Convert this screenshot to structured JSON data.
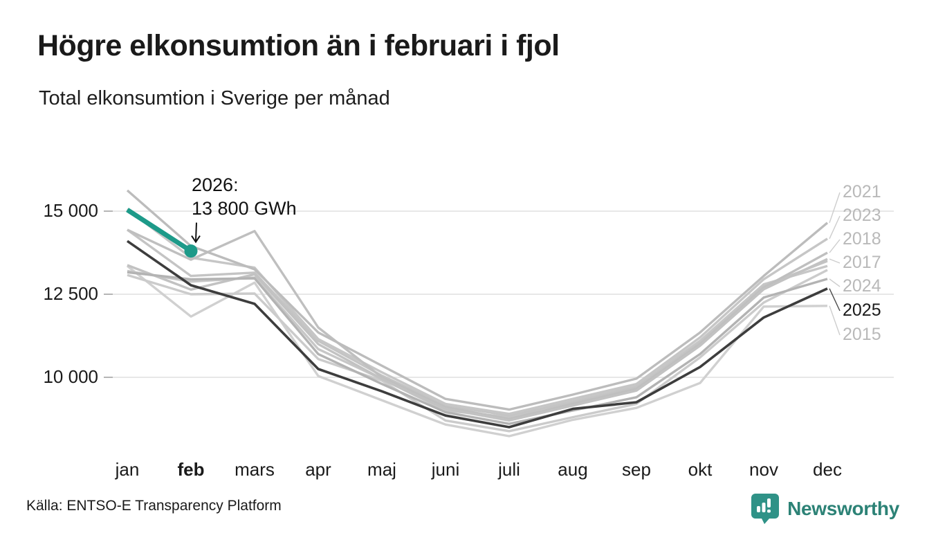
{
  "header": {
    "title": "Högre elkonsumtion än i februari i fjol",
    "subtitle": "Total elkonsumtion i Sverige per månad"
  },
  "footer": {
    "source": "Källa: ENTSO-E Transparency Platform",
    "brand": "Newsworthy"
  },
  "colors": {
    "accent_teal": "#1d9a89",
    "dark_line": "#3d3d3d",
    "grid": "#e7e7e7",
    "muted_label": "#b9b9b9",
    "logo_teal": "#2f9287",
    "wordmark_teal": "#2c8276"
  },
  "chart_data": {
    "type": "line",
    "categories": [
      "jan",
      "feb",
      "mars",
      "apr",
      "maj",
      "juni",
      "juli",
      "aug",
      "sep",
      "okt",
      "nov",
      "dec"
    ],
    "highlight_month": "feb",
    "unit": "GWh",
    "ylim": [
      7800,
      16300
    ],
    "yticks": [
      {
        "value": 15000,
        "label": "15 000"
      },
      {
        "value": 12500,
        "label": "12 500"
      },
      {
        "value": 10000,
        "label": "10 000"
      }
    ],
    "grid": true,
    "legend_position": "right-edge-labels",
    "annotation": {
      "line1": "2026:",
      "line2": "13 800 GWh",
      "month": "feb",
      "value": 13800
    },
    "right_labels": [
      "2021",
      "2023",
      "2018",
      "2017",
      "2024",
      "2025",
      "2015"
    ],
    "series": [
      {
        "name": "2015",
        "color": "#d0d0d0",
        "width": 3.4,
        "values": [
          13350,
          11830,
          12850,
          10040,
          9310,
          8580,
          8230,
          8720,
          9080,
          9830,
          12130,
          12150
        ]
      },
      {
        "name": "",
        "color": "#cbcbcb",
        "width": 3.4,
        "values": [
          13080,
          12500,
          12520,
          10550,
          9900,
          8700,
          8380,
          8800,
          9200,
          10600,
          12250,
          13230
        ]
      },
      {
        "name": "",
        "color": "#c7c7c7",
        "width": 3.4,
        "values": [
          13200,
          12880,
          13000,
          10850,
          9950,
          9000,
          8800,
          9300,
          9750,
          11100,
          12800,
          13350
        ]
      },
      {
        "name": "",
        "color": "#c4c4c4",
        "width": 3.4,
        "values": [
          14440,
          13050,
          13150,
          11100,
          10050,
          9150,
          8850,
          9250,
          9700,
          11050,
          12750,
          13500
        ]
      },
      {
        "name": "2023",
        "color": "#c6c6c6",
        "width": 3.4,
        "values": [
          15060,
          13600,
          13300,
          11150,
          10150,
          9200,
          8900,
          9350,
          9800,
          11200,
          12950,
          14170
        ]
      },
      {
        "name": "2018",
        "color": "#bfbfbf",
        "width": 3.4,
        "values": [
          14440,
          13540,
          14400,
          11500,
          10000,
          9100,
          8750,
          9200,
          9650,
          11000,
          12700,
          13750
        ]
      },
      {
        "name": "2017",
        "color": "#c2c2c2",
        "width": 3.4,
        "values": [
          13375,
          12640,
          13100,
          11000,
          9950,
          9050,
          8700,
          9150,
          9600,
          10950,
          12650,
          13560
        ]
      },
      {
        "name": "2021",
        "color": "#bcbcbc",
        "width": 3.4,
        "values": [
          15625,
          13950,
          13250,
          11350,
          10350,
          9350,
          9030,
          9480,
          9960,
          11350,
          13050,
          14650
        ]
      },
      {
        "name": "2024",
        "color": "#b3b3b3",
        "width": 3.4,
        "values": [
          13160,
          12950,
          12980,
          10700,
          9800,
          8950,
          8600,
          9000,
          9400,
          10700,
          12400,
          12960
        ]
      },
      {
        "name": "2025",
        "color": "#3d3d3d",
        "width": 3.6,
        "values": [
          14100,
          12770,
          12210,
          10250,
          9580,
          8850,
          8500,
          9050,
          9250,
          10310,
          11800,
          12670
        ]
      },
      {
        "name": "2026",
        "color": "#1d9a89",
        "width": 7,
        "values": [
          15040,
          13800,
          null,
          null,
          null,
          null,
          null,
          null,
          null,
          null,
          null,
          null
        ]
      }
    ]
  }
}
